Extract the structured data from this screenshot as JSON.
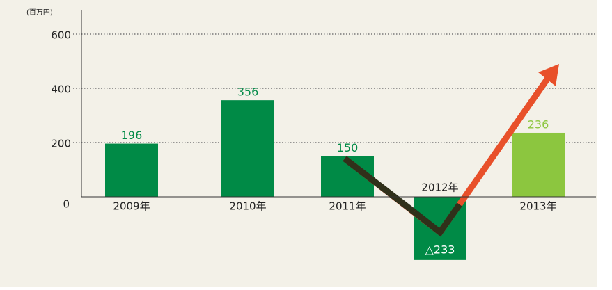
{
  "chart_data": {
    "type": "bar",
    "unit_label": "(百万円)",
    "categories": [
      "2009年",
      "2010年",
      "2011年",
      "2012年",
      "2013年"
    ],
    "values": [
      196,
      356,
      150,
      -233,
      236
    ],
    "value_labels": [
      "196",
      "356",
      "150",
      "△233",
      "236"
    ],
    "colors": [
      "#008a46",
      "#008a46",
      "#008a46",
      "#008a46",
      "#8cc63f"
    ],
    "ylim": [
      -300,
      660
    ],
    "yticks": [
      0,
      200,
      400,
      600
    ],
    "grid": true
  }
}
